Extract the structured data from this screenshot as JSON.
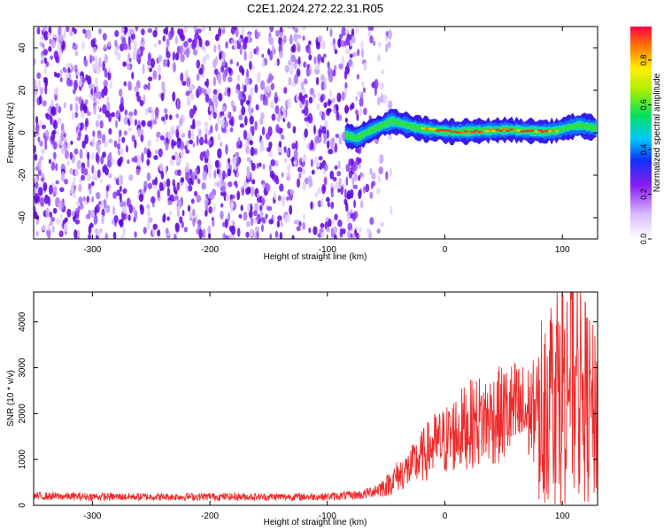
{
  "title": "C2E1.2024.272.22.31.R05",
  "colors": {
    "snr_line": "#ee2a2a",
    "spectrogram_noise": "#6a00e8",
    "background": "#ffffff"
  },
  "chart_data": [
    {
      "type": "heatmap",
      "xlabel": "Height of straight line (km)",
      "ylabel": "Frequency (Hz)",
      "xlim": [
        -350,
        130
      ],
      "ylim": [
        -50,
        50
      ],
      "x_ticks": [
        -300,
        -200,
        -100,
        0,
        100
      ],
      "y_ticks": [
        -40,
        -20,
        0,
        20,
        40
      ],
      "noise_region_x": [
        -350,
        -80
      ],
      "noise_fade_x": [
        -80,
        -40
      ],
      "signal_start_x": -85,
      "signal_center": {
        "x": [
          -85,
          -75,
          -65,
          -55,
          -45,
          -35,
          -25,
          -15,
          -5,
          5,
          15,
          25,
          35,
          45,
          55,
          65,
          75,
          85,
          95,
          105,
          115,
          125,
          130
        ],
        "y": [
          -1.0,
          -2.5,
          0.5,
          3.0,
          5.5,
          4.0,
          2.5,
          1.5,
          1.0,
          0.5,
          0.5,
          0.8,
          1.0,
          1.2,
          1.5,
          1.0,
          0.8,
          0.5,
          1.0,
          2.5,
          3.5,
          2.5,
          2.0
        ]
      },
      "colorbar": {
        "label": "Normalized spectral amplitude",
        "min": 0.0,
        "max": 0.95,
        "ticks": [
          0.0,
          0.2,
          0.4,
          0.6,
          0.8
        ]
      }
    },
    {
      "type": "line",
      "xlabel": "Height of straight line (km)",
      "ylabel": "SNR (10 * v/v)",
      "xlim": [
        -350,
        130
      ],
      "ylim": [
        0,
        4650
      ],
      "x_ticks": [
        -300,
        -200,
        -100,
        0,
        100
      ],
      "y_ticks": [
        0,
        1000,
        2000,
        3000,
        4000
      ],
      "series": [
        {
          "x": [
            -350,
            -300,
            -250,
            -200,
            -150,
            -100,
            -70,
            -50,
            -40,
            -30,
            -20,
            -10,
            0,
            10,
            20,
            30,
            40,
            50,
            60,
            70,
            80,
            90,
            95,
            100,
            105,
            110,
            115,
            120,
            125,
            130
          ],
          "y": [
            200,
            190,
            185,
            190,
            185,
            190,
            230,
            420,
            650,
            800,
            1050,
            1300,
            1400,
            1600,
            1750,
            1850,
            1900,
            2000,
            2050,
            2000,
            2100,
            2400,
            2600,
            2800,
            3000,
            2700,
            2500,
            2300,
            2000,
            1900
          ]
        }
      ]
    }
  ]
}
